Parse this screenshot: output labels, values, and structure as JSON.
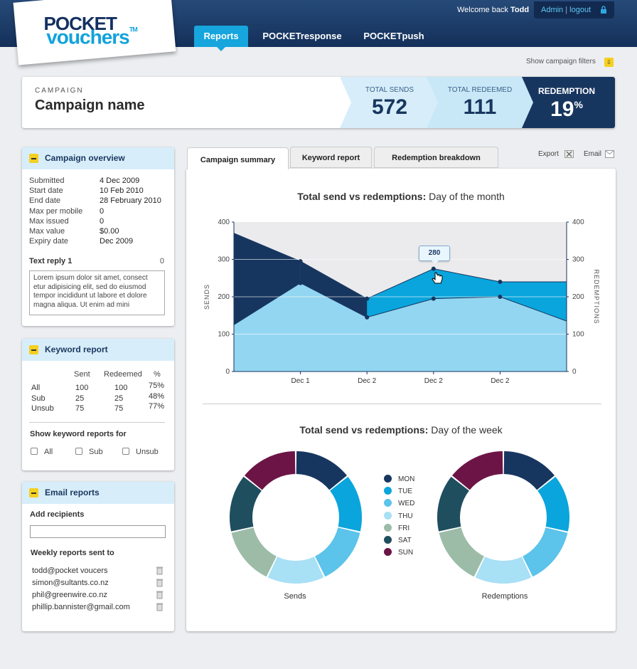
{
  "brand": {
    "line1": "POCKET",
    "line2": "vouchers",
    "tm": "TM"
  },
  "nav": {
    "tabs": [
      "Reports",
      "POCKETresponse",
      "POCKETpush"
    ]
  },
  "user": {
    "welcome": "Welcome back",
    "name": "Todd",
    "admin": "Admin",
    "sep": "|",
    "logout": "logout"
  },
  "filters": {
    "label": "Show campaign filters"
  },
  "campaign": {
    "label": "CAMPAIGN",
    "name": "Campaign name",
    "total_sends_label": "TOTAL SENDS",
    "total_sends": "572",
    "total_redeemed_label": "TOTAL REDEEMED",
    "total_redeemed": "111",
    "redemption_label": "REDEMPTION",
    "redemption_value": "19",
    "redemption_unit": "%"
  },
  "overview": {
    "title": "Campaign overview",
    "rows": [
      {
        "k": "Submitted",
        "v": "4 Dec 2009"
      },
      {
        "k": "Start date",
        "v": "10 Feb 2010"
      },
      {
        "k": "End date",
        "v": "28 February 2010"
      },
      {
        "k": "Max per mobile",
        "v": "0"
      },
      {
        "k": "Max issued",
        "v": "0"
      },
      {
        "k": "Max value",
        "v": "$0.00"
      },
      {
        "k": "Expiry date",
        "v": "Dec 2009"
      }
    ],
    "text_reply_label": "Text reply 1",
    "text_reply_count": "0",
    "text_reply_body": "Lorem ipsum dolor sit amet, consect etur adipisicing elit, sed do eiusmod tempor incididunt ut labore et dolore magna aliqua. Ut enim ad mini"
  },
  "keyword": {
    "title": "Keyword report",
    "headers": [
      "Sent",
      "Redeemed",
      "%"
    ],
    "rows": [
      {
        "name": "All",
        "sent": "100",
        "redeemed": "100",
        "pct": "75%"
      },
      {
        "name": "Sub",
        "sent": "25",
        "redeemed": "25",
        "pct": "48%"
      },
      {
        "name": "Unsub",
        "sent": "75",
        "redeemed": "75",
        "pct": "77%"
      }
    ],
    "show_label": "Show keyword reports for",
    "checks": [
      "All",
      "Sub",
      "Unsub"
    ]
  },
  "email_reports": {
    "title": "Email reports",
    "add_label": "Add recipients",
    "input_value": "",
    "weekly_label": "Weekly reports sent to",
    "recipients": [
      "todd@pocket voucers",
      "simon@sultants.co.nz",
      "phil@greenwire.co.nz",
      "phillip.bannister@gmail.com"
    ]
  },
  "tabs": {
    "summary": "Campaign summary",
    "keyword": "Keyword report",
    "redemption": "Redemption breakdown",
    "export": "Export",
    "email": "Email"
  },
  "chart1_title": {
    "bold": "Total send vs redemptions:",
    "rest": "Day of the month"
  },
  "chart2_title": {
    "bold": "Total send vs redemptions:",
    "rest": "Day of the week"
  },
  "tooltip": "280",
  "colors": {
    "navy": "#17365f",
    "blue": "#0aa5dc",
    "light": "#93d6f1",
    "bg": "#eceef1"
  },
  "chart_data": [
    {
      "type": "area",
      "x": [
        "",
        "Dec 1",
        "Dec 2",
        "Dec 2",
        "Dec 2",
        ""
      ],
      "series": [
        {
          "values": [
            370,
            295,
            195,
            275,
            240,
            240
          ]
        },
        {
          "values": [
            125,
            237,
            145,
            195,
            200,
            135
          ]
        }
      ],
      "xlabel": "",
      "ylabel": "SENDS",
      "y2label": "REDEMPTIONS",
      "ylim": [
        0,
        400
      ],
      "yticks": [
        0,
        100,
        200,
        300,
        400
      ],
      "grid": true
    },
    {
      "type": "pie",
      "title": "Sends",
      "categories": [
        "MON",
        "TUE",
        "WED",
        "THU",
        "FRI",
        "SAT",
        "SUN"
      ],
      "values": [
        14,
        14,
        14,
        14,
        14,
        14,
        14
      ],
      "colors": [
        "#17365f",
        "#0aa5dc",
        "#5cc3ea",
        "#a8e0f5",
        "#9cbca8",
        "#1f4e5f",
        "#6d1446"
      ],
      "legend": "center"
    },
    {
      "type": "pie",
      "title": "Redemptions",
      "categories": [
        "MON",
        "TUE",
        "WED",
        "THU",
        "FRI",
        "SAT",
        "SUN"
      ],
      "values": [
        14,
        14,
        14,
        14,
        14,
        14,
        14
      ],
      "colors": [
        "#17365f",
        "#0aa5dc",
        "#5cc3ea",
        "#a8e0f5",
        "#9cbca8",
        "#1f4e5f",
        "#6d1446"
      ]
    }
  ]
}
